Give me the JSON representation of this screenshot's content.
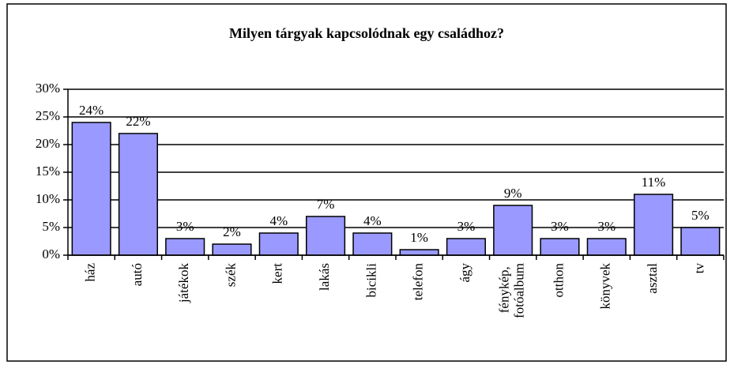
{
  "chart_data": {
    "type": "bar",
    "title": "Milyen tárgyak kapcsolódnak egy családhoz?",
    "categories": [
      "ház",
      "autó",
      "játékok",
      "szék",
      "kert",
      "lakás",
      "bicikli",
      "telefon",
      "ágy",
      "fénykép, fotóalbum",
      "otthon",
      "könyvek",
      "asztal",
      "tv"
    ],
    "values": [
      24,
      22,
      3,
      2,
      4,
      7,
      4,
      1,
      3,
      9,
      3,
      3,
      11,
      5
    ],
    "value_labels": [
      "24%",
      "22%",
      "3%",
      "2%",
      "4%",
      "7%",
      "4%",
      "1%",
      "3%",
      "9%",
      "3%",
      "3%",
      "11%",
      "5%"
    ],
    "color": "#9999ff",
    "ylim": [
      0,
      30
    ],
    "yticks": [
      {
        "value": 0,
        "label": "0%"
      },
      {
        "value": 5,
        "label": "5%"
      },
      {
        "value": 10,
        "label": "10%"
      },
      {
        "value": 15,
        "label": "15%"
      },
      {
        "value": 20,
        "label": "20%"
      },
      {
        "value": 25,
        "label": "25%"
      },
      {
        "value": 30,
        "label": "30%"
      }
    ],
    "grid": true
  }
}
